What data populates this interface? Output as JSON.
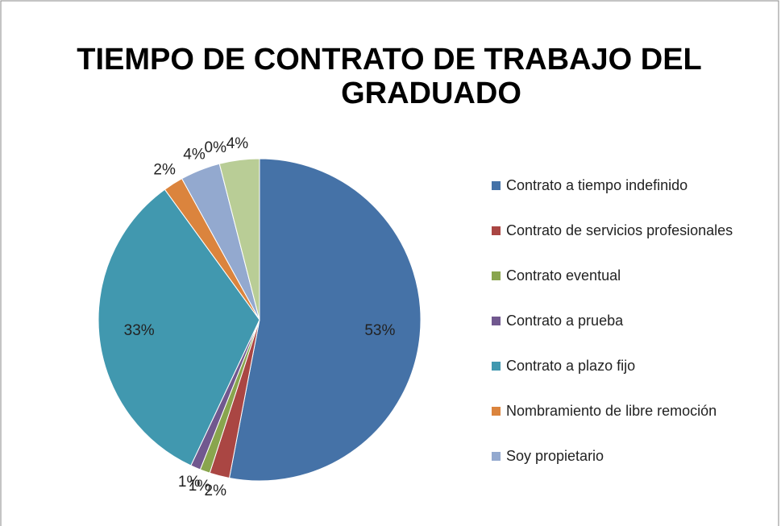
{
  "chart_data": {
    "type": "pie",
    "title": [
      "TIEMPO DE CONTRATO DE TRABAJO DEL",
      "GRADUADO"
    ],
    "categories": [
      "Contrato a tiempo indefinido",
      "Contrato de servicios profesionales",
      "Contrato eventual",
      "Contrato a prueba",
      "Contrato a plazo fijo",
      "Nombramiento de libre remoción",
      "Soy propietario",
      null,
      null
    ],
    "values": [
      53,
      2,
      1,
      1,
      33,
      2,
      4,
      0,
      4
    ],
    "value_labels": [
      "53%",
      "2%",
      "1%",
      "1%",
      "33%",
      "2%",
      "4%",
      "0%",
      "4%"
    ],
    "colors": [
      "#4572A7",
      "#AA4643",
      "#89A54E",
      "#71588F",
      "#4198AF",
      "#DB843D",
      "#93A9CF",
      "#D19392",
      "#B9CD96"
    ]
  }
}
